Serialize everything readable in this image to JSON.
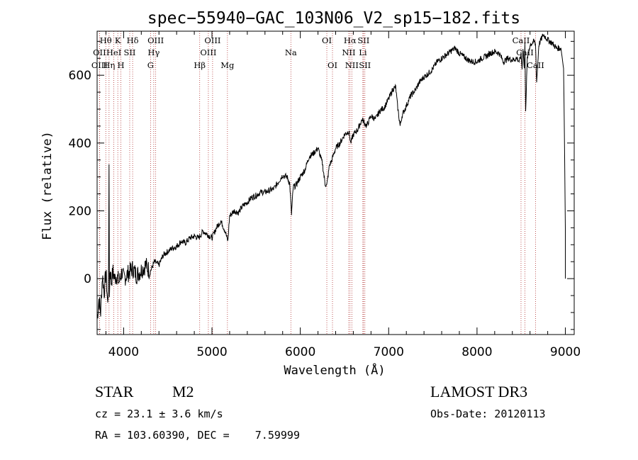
{
  "chart_data": {
    "type": "line",
    "title": "spec−55940−GAC_103N06_V2_sp15−182.fits",
    "xlabel": "Wavelength (Å)",
    "ylabel": "Flux (relative)",
    "xlim": [
      3700,
      9100
    ],
    "ylim": [
      -165,
      730
    ],
    "xticks": [
      4000,
      5000,
      6000,
      7000,
      8000,
      9000
    ],
    "yticks": [
      0,
      200,
      400,
      600
    ],
    "series": [
      {
        "name": "flux",
        "x": [
          3700,
          3720,
          3740,
          3760,
          3780,
          3800,
          3820,
          3830,
          3835,
          3840,
          3845,
          3850,
          3860,
          3880,
          3900,
          3920,
          3950,
          3980,
          4000,
          4050,
          4100,
          4150,
          4200,
          4250,
          4300,
          4350,
          4400,
          4450,
          4500,
          4550,
          4600,
          4650,
          4700,
          4750,
          4800,
          4850,
          4900,
          4950,
          5000,
          5050,
          5100,
          5150,
          5180,
          5200,
          5250,
          5300,
          5350,
          5400,
          5450,
          5500,
          5550,
          5600,
          5650,
          5700,
          5750,
          5800,
          5850,
          5880,
          5900,
          5910,
          5920,
          5950,
          6000,
          6050,
          6100,
          6150,
          6200,
          6250,
          6280,
          6300,
          6330,
          6350,
          6400,
          6450,
          6500,
          6550,
          6570,
          6600,
          6650,
          6700,
          6750,
          6800,
          6850,
          6900,
          6950,
          7000,
          7050,
          7080,
          7100,
          7130,
          7150,
          7200,
          7250,
          7300,
          7350,
          7400,
          7450,
          7500,
          7550,
          7600,
          7650,
          7700,
          7750,
          7800,
          7850,
          7900,
          7950,
          8000,
          8050,
          8100,
          8150,
          8200,
          8250,
          8300,
          8350,
          8400,
          8450,
          8480,
          8498,
          8510,
          8520,
          8535,
          8542,
          8550,
          8570,
          8600,
          8650,
          8662,
          8675,
          8700,
          8750,
          8800,
          8850,
          8900,
          8950,
          8980,
          8990,
          9000,
          9000
        ],
        "values": [
          -120,
          -60,
          -100,
          10,
          -40,
          20,
          -80,
          15,
          340,
          -40,
          10,
          30,
          -10,
          20,
          0,
          10,
          -10,
          20,
          0,
          15,
          30,
          10,
          25,
          40,
          20,
          50,
          40,
          70,
          80,
          90,
          95,
          110,
          105,
          120,
          125,
          120,
          140,
          130,
          120,
          150,
          170,
          140,
          110,
          185,
          200,
          195,
          215,
          225,
          240,
          245,
          255,
          255,
          260,
          265,
          285,
          305,
          300,
          280,
          190,
          230,
          270,
          275,
          300,
          320,
          360,
          370,
          385,
          340,
          280,
          275,
          335,
          345,
          385,
          400,
          425,
          435,
          400,
          425,
          440,
          470,
          450,
          480,
          470,
          495,
          505,
          530,
          560,
          565,
          510,
          450,
          480,
          510,
          540,
          555,
          580,
          595,
          605,
          620,
          640,
          650,
          660,
          670,
          680,
          665,
          655,
          645,
          640,
          640,
          650,
          655,
          665,
          670,
          665,
          640,
          650,
          645,
          650,
          640,
          660,
          620,
          680,
          620,
          690,
          500,
          650,
          690,
          700,
          690,
          580,
          690,
          720,
          705,
          695,
          680,
          680,
          620,
          400,
          150,
          0
        ]
      }
    ],
    "emission_lines": [
      {
        "label": "Hθ",
        "wl": 3798,
        "row": 0,
        "color": "#b03030"
      },
      {
        "label": "OII",
        "wl": 3727,
        "row": 1,
        "color": "#b03030"
      },
      {
        "label": "OIII",
        "wl": 3727,
        "row": 2,
        "color": "#b03030"
      },
      {
        "label": "Hη",
        "wl": 3835,
        "row": 2,
        "color": "#b03030"
      },
      {
        "label": "HeI",
        "wl": 3889,
        "row": 1,
        "color": "#b03030"
      },
      {
        "label": "K",
        "wl": 3934,
        "row": 0,
        "color": "#b03030"
      },
      {
        "label": "H",
        "wl": 3969,
        "row": 2,
        "color": "#b03030"
      },
      {
        "label": "SII",
        "wl": 4069,
        "row": 1,
        "color": "#b03030"
      },
      {
        "label": "Hδ",
        "wl": 4102,
        "row": 0,
        "color": "#b03030"
      },
      {
        "label": "OIII",
        "wl": 4363,
        "row": 0,
        "color": "#b03030"
      },
      {
        "label": "Hγ",
        "wl": 4341,
        "row": 1,
        "color": "#b03030"
      },
      {
        "label": "G",
        "wl": 4305,
        "row": 2,
        "color": "#b03030"
      },
      {
        "label": "Hβ",
        "wl": 4861,
        "row": 2,
        "color": "#b03030"
      },
      {
        "label": "OIII",
        "wl": 4959,
        "row": 1,
        "color": "#b03030"
      },
      {
        "label": "OIII",
        "wl": 5007,
        "row": 0,
        "color": "#b03030"
      },
      {
        "label": "Mg",
        "wl": 5175,
        "row": 2,
        "color": "#b03030"
      },
      {
        "label": "Na",
        "wl": 5893,
        "row": 1,
        "color": "#b03030"
      },
      {
        "label": "OI",
        "wl": 6300,
        "row": 0,
        "color": "#b03030"
      },
      {
        "label": "OI",
        "wl": 6364,
        "row": 2,
        "color": "#b03030"
      },
      {
        "label": "Hα",
        "wl": 6563,
        "row": 0,
        "color": "#b03030"
      },
      {
        "label": "NII",
        "wl": 6548,
        "row": 1,
        "color": "#b03030"
      },
      {
        "label": "NII",
        "wl": 6583,
        "row": 2,
        "color": "#b03030"
      },
      {
        "label": "SII",
        "wl": 6716,
        "row": 0,
        "color": "#b03030"
      },
      {
        "label": "Li",
        "wl": 6708,
        "row": 1,
        "color": "#b03030"
      },
      {
        "label": "SII",
        "wl": 6731,
        "row": 2,
        "color": "#b03030"
      },
      {
        "label": "CaII",
        "wl": 8498,
        "row": 0,
        "color": "#b03030"
      },
      {
        "label": "CaII",
        "wl": 8542,
        "row": 1,
        "color": "#b03030"
      },
      {
        "label": "CaII",
        "wl": 8662,
        "row": 2,
        "color": "#b03030"
      }
    ]
  },
  "info": {
    "object_class": "STAR",
    "subclass": "M2",
    "survey": "LAMOST DR3",
    "redshift": "cz = 23.1 ± 3.6 km/s",
    "obs_date": "Obs-Date: 20120113",
    "coords": "RA = 103.60390, DEC =    7.59999"
  },
  "colors": {
    "line": "#000000",
    "marker": "#b03030"
  }
}
